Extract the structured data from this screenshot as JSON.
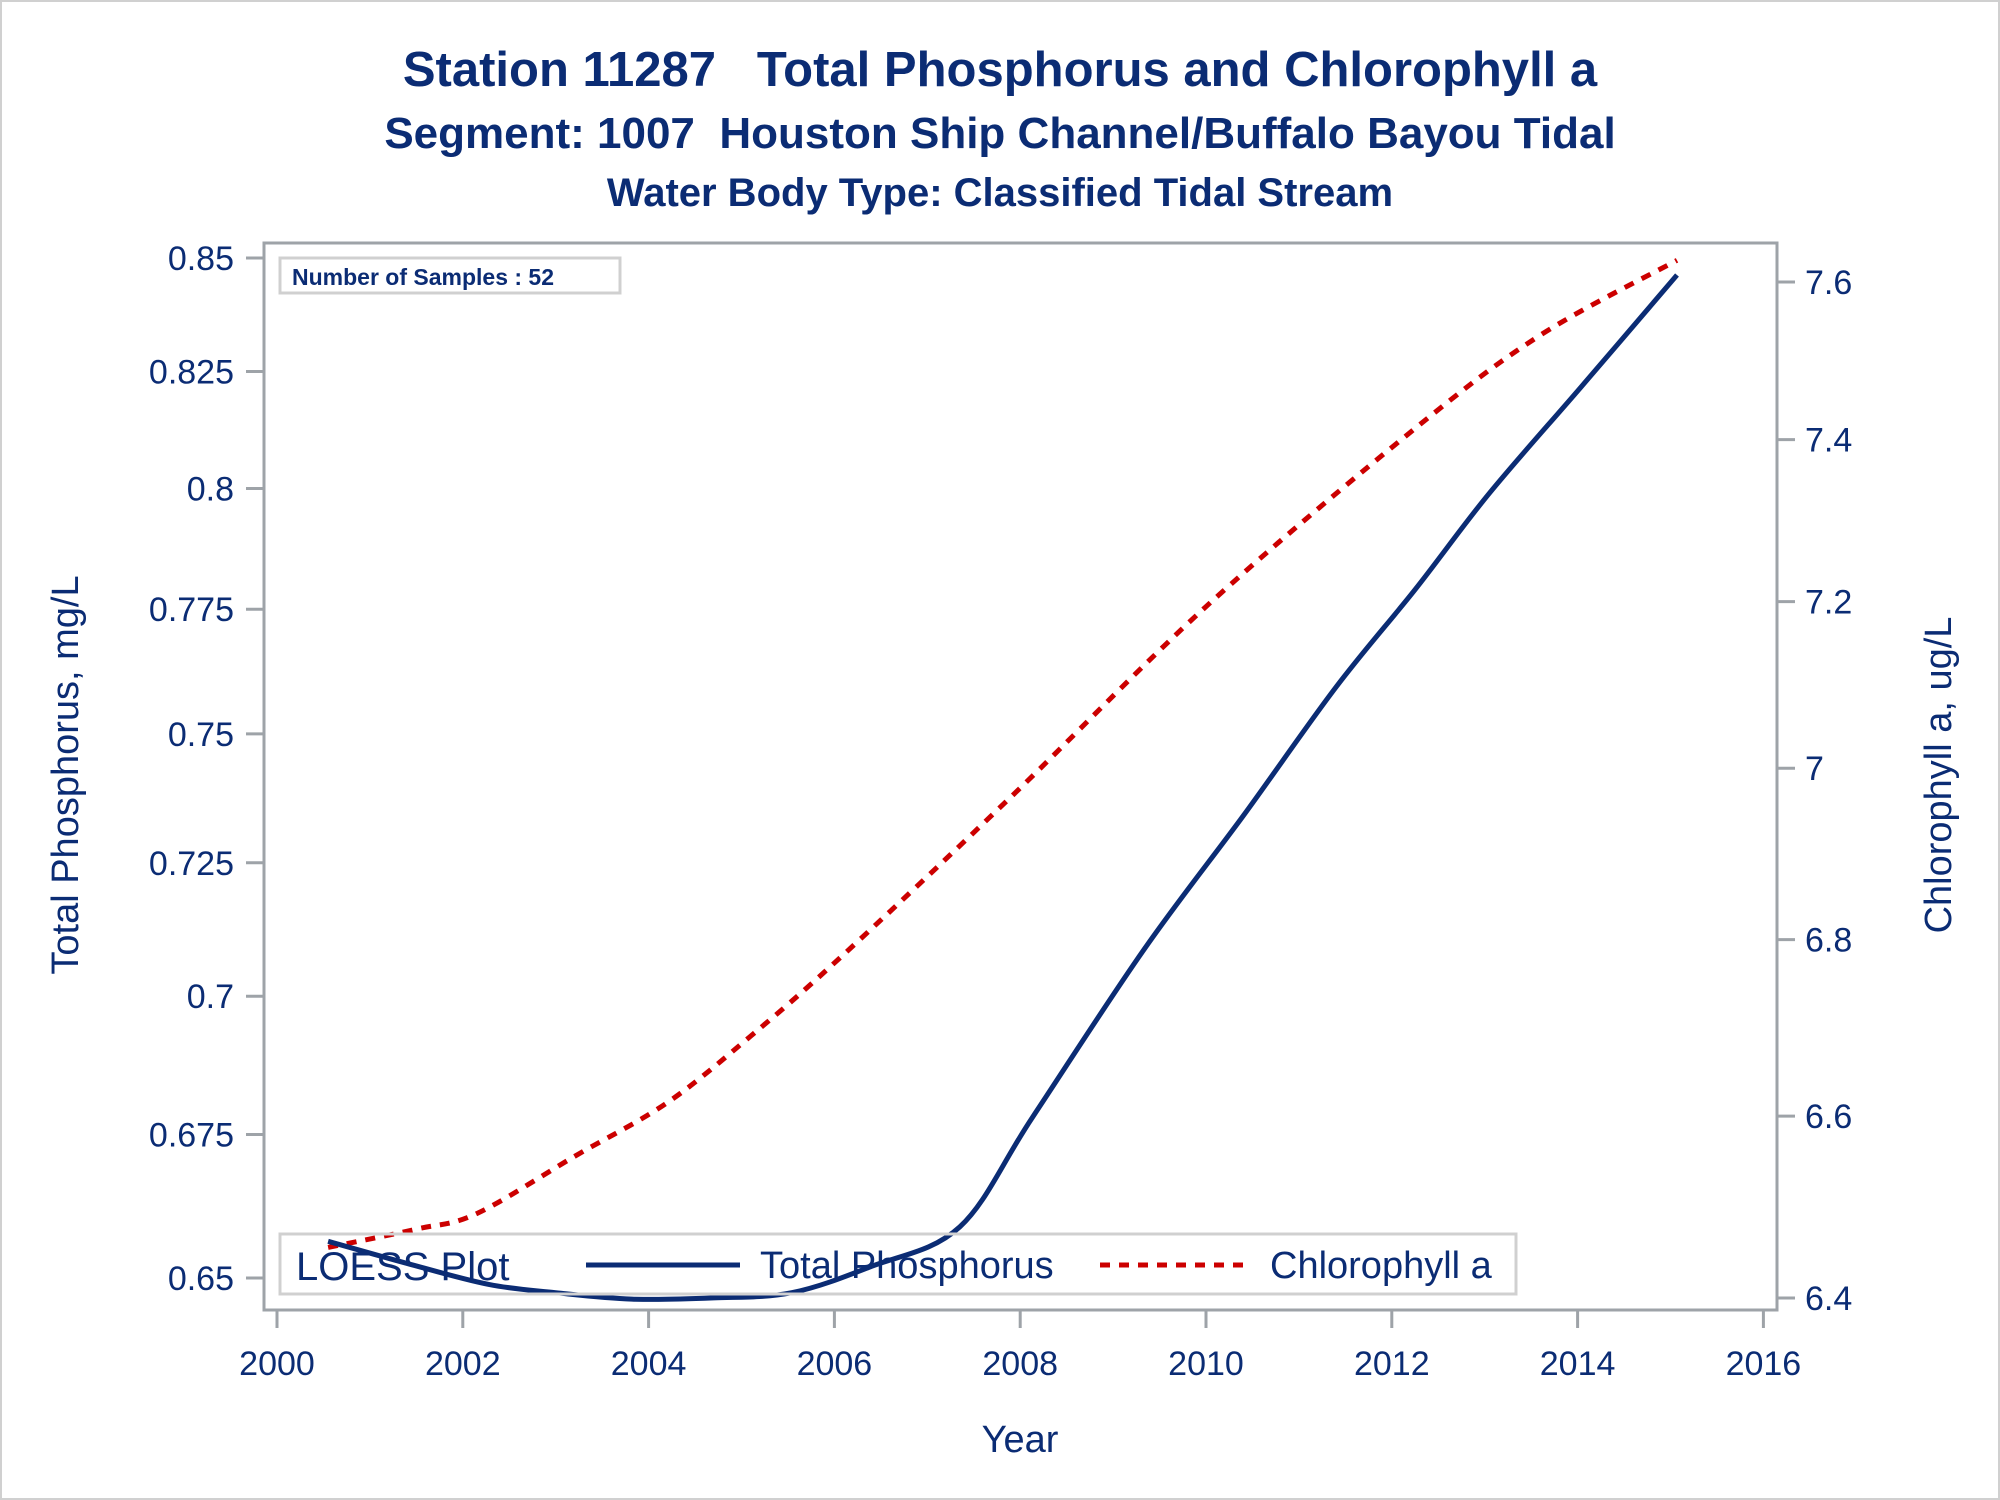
{
  "chart_data": {
    "type": "line",
    "title": "Station 11287   Total Phosphorus and Chlorophyll a",
    "subtitle": "Segment: 1007  Houston Ship Channel/Buffalo Bayou Tidal",
    "subtitle2": "Water Body Type: Classified Tidal Stream",
    "xlabel": "Year",
    "ylabel": "Total Phosphorus, mg/L",
    "y2label": "Chlorophyll a, ug/L",
    "xlim": [
      2000,
      2016.2
    ],
    "ylim": [
      0.6445,
      0.8535
    ],
    "y2lim": [
      6.39,
      7.64
    ],
    "yscale": "log",
    "y2scale": "log",
    "grid": false,
    "x_ticks": [
      2000,
      2002,
      2004,
      2006,
      2008,
      2010,
      2012,
      2014,
      2016
    ],
    "y_ticks": [
      0.65,
      0.675,
      0.7,
      0.725,
      0.75,
      0.775,
      0.8,
      0.825,
      0.85
    ],
    "y_tick_labels": [
      "0.65",
      "0.675",
      "0.7",
      "0.725",
      "0.75",
      "0.775",
      "0.8",
      "0.825",
      "0.85"
    ],
    "y2_ticks": [
      6.4,
      6.6,
      6.8,
      7.0,
      7.2,
      7.4,
      7.6
    ],
    "y2_tick_labels": [
      "6.4",
      "6.6",
      "6.8",
      "7",
      "7.2",
      "7.4",
      "7.6"
    ],
    "annotation": "Number of Samples : 52",
    "legend": {
      "title": "LOESS Plot",
      "placement": "bottom-inside",
      "entries": [
        "Total Phosphorus",
        "Chlorophyll a"
      ]
    },
    "series": [
      {
        "name": "Total Phosphorus",
        "axis": "left",
        "style": "solid",
        "color": "#0b2c74",
        "x": [
          2000.55,
          2001.4,
          2002.28,
          2003.0,
          2003.82,
          2004.7,
          2005.54,
          2006.4,
          2007.35,
          2008.13,
          2009.33,
          2010.4,
          2011.4,
          2012.25,
          2013.05,
          2014.04,
          2015.07
        ],
        "y": [
          0.6563,
          0.6525,
          0.6489,
          0.6475,
          0.6464,
          0.6466,
          0.6475,
          0.652,
          0.6588,
          0.678,
          0.7086,
          0.734,
          0.7593,
          0.779,
          0.799,
          0.8217,
          0.8462
        ]
      },
      {
        "name": "Chlorophyll a",
        "axis": "right",
        "style": "dashed",
        "color": "#cc0000",
        "x": [
          2000.55,
          2001.5,
          2002.15,
          2003.2,
          2004.2,
          2005.1,
          2006.07,
          2007.9,
          2010.01,
          2012.25,
          2013.6,
          2015.07
        ],
        "y": [
          6.455,
          6.475,
          6.492,
          6.555,
          6.615,
          6.69,
          6.78,
          6.966,
          7.195,
          7.414,
          7.532,
          7.628
        ]
      }
    ]
  },
  "colors": {
    "text": "#0b2c74",
    "axis": "#9ea3a8",
    "box_border": "#d0d0d0",
    "tp_line": "#0b2c74",
    "chl_line": "#cc0000"
  }
}
